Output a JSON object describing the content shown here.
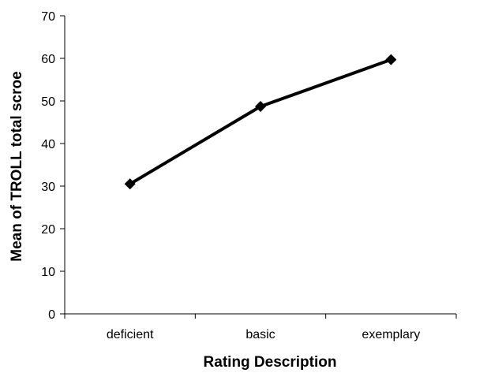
{
  "chart_data": {
    "type": "line",
    "title": "",
    "xlabel": "Rating Description",
    "ylabel": "Mean of TROLL total scroe",
    "categories": [
      "deficient",
      "basic",
      "exemplary"
    ],
    "series": [
      {
        "values": [
          30.5,
          48.7,
          59.7
        ]
      }
    ],
    "ylim": [
      0,
      70
    ],
    "yticks": [
      0,
      10,
      20,
      30,
      40,
      50,
      60,
      70
    ],
    "grid": false,
    "legend": "none",
    "marker": "diamond",
    "line_color": "#000000"
  }
}
